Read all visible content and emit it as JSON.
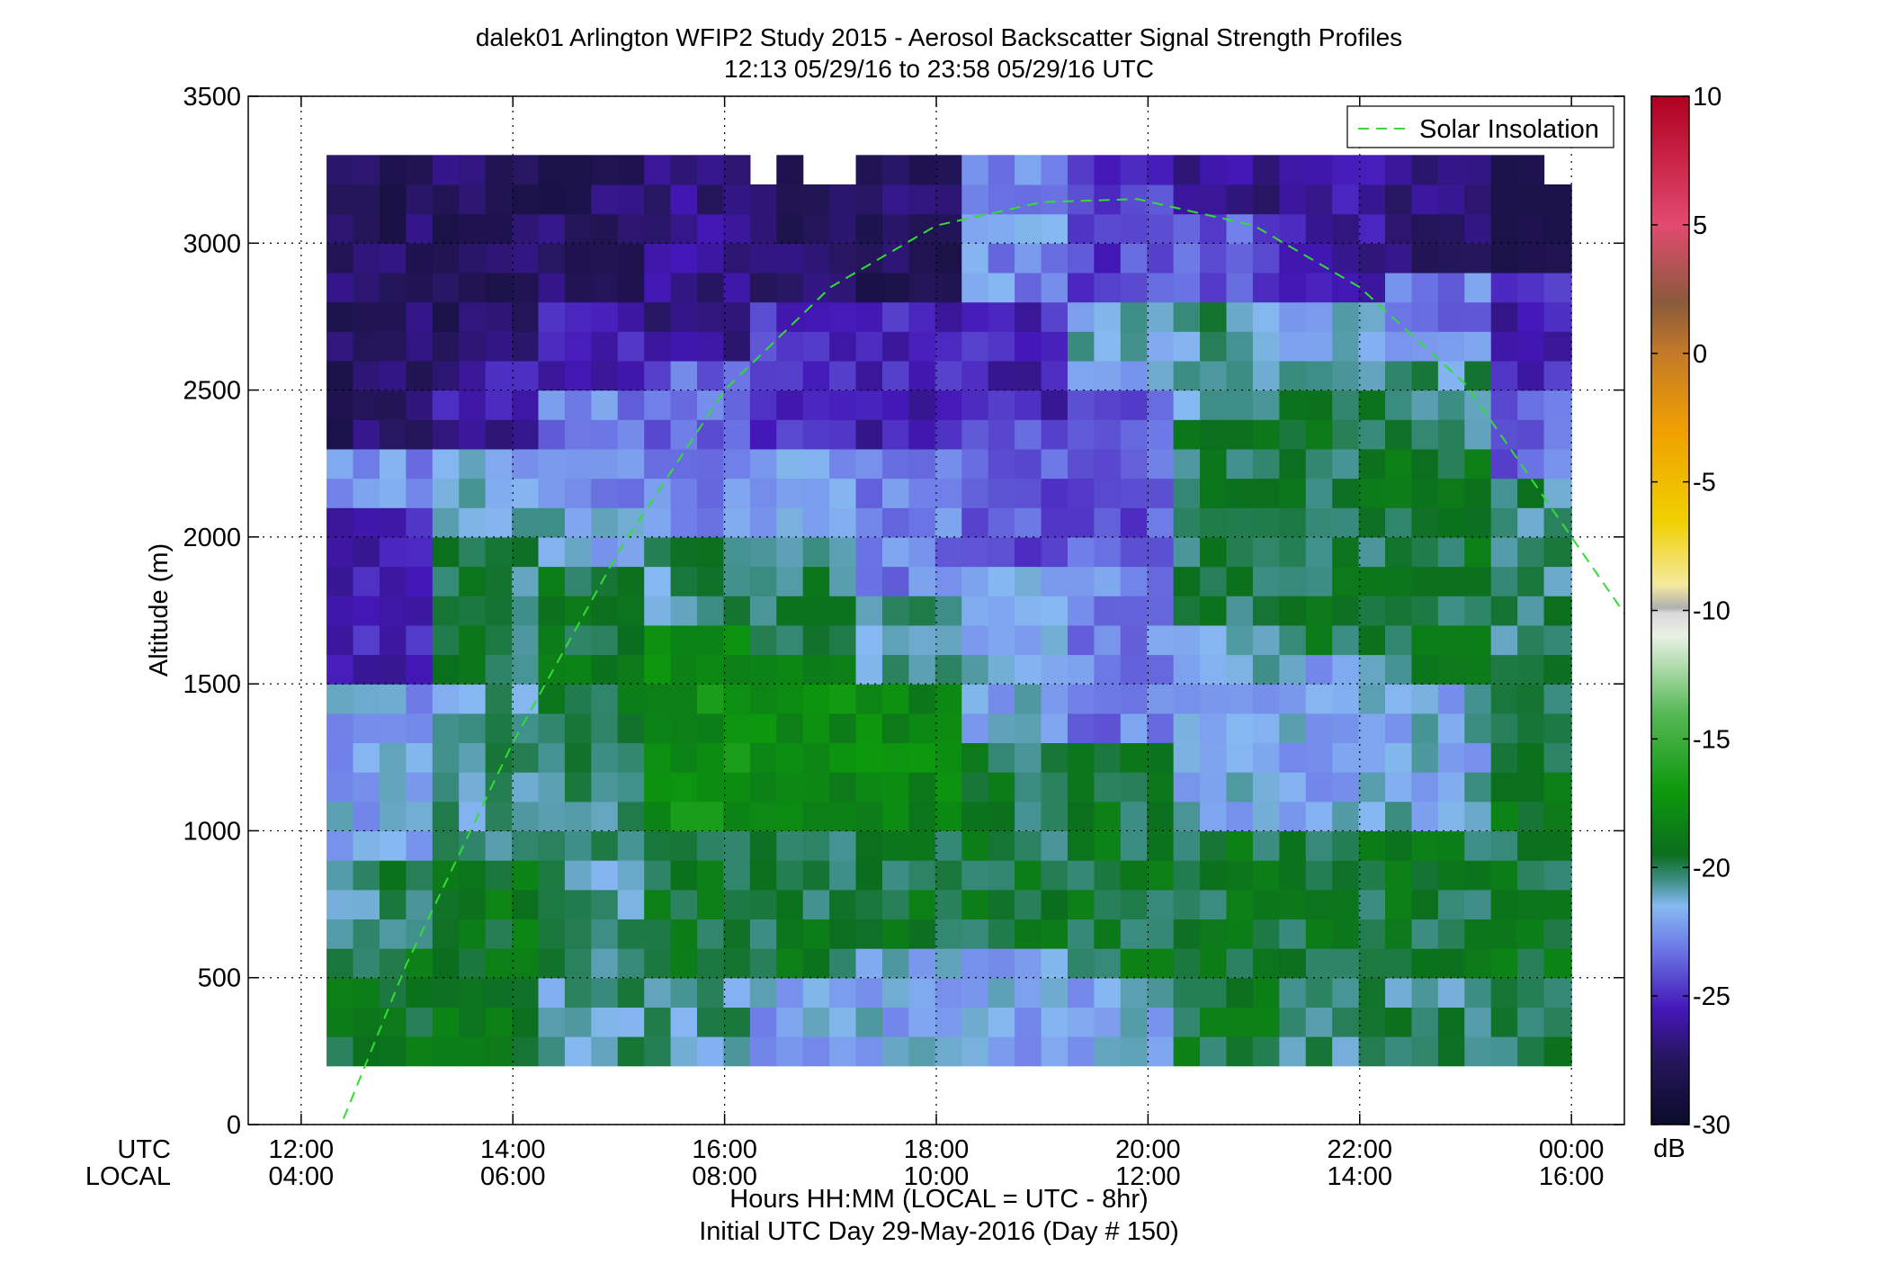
{
  "chart_data": {
    "type": "heatmap",
    "title": "dalek01 Arlington WFIP2 Study 2015 - Aerosol Backscatter Signal Strength Profiles",
    "subtitle": "12:13 05/29/16 to 23:58 05/29/16  UTC",
    "xlabel": "Hours HH:MM  (LOCAL = UTC - 8hr)",
    "xlabel2": "Initial UTC Day 29-May-2016 (Day # 150)",
    "ylabel": "Altitude (m)",
    "x_row_labels": [
      "UTC",
      "LOCAL"
    ],
    "xlim": [
      11.5,
      24.5
    ],
    "ylim": [
      0,
      3500
    ],
    "x_ticks": [
      {
        "value": 12,
        "utc": "12:00",
        "local": "04:00"
      },
      {
        "value": 14,
        "utc": "14:00",
        "local": "06:00"
      },
      {
        "value": 16,
        "utc": "16:00",
        "local": "08:00"
      },
      {
        "value": 18,
        "utc": "18:00",
        "local": "10:00"
      },
      {
        "value": 20,
        "utc": "20:00",
        "local": "12:00"
      },
      {
        "value": 22,
        "utc": "22:00",
        "local": "14:00"
      },
      {
        "value": 24,
        "utc": "00:00",
        "local": "16:00"
      }
    ],
    "y_ticks": [
      0,
      500,
      1000,
      1500,
      2000,
      2500,
      3000,
      3500
    ],
    "grid": true,
    "colorbar": {
      "unit": "dB",
      "range": [
        -30,
        10
      ],
      "ticks": [
        -30,
        -25,
        -20,
        -15,
        -10,
        -5,
        0,
        5,
        10
      ],
      "stops": [
        {
          "v": -30,
          "c": "#0b0b2a"
        },
        {
          "v": -27.5,
          "c": "#25165c"
        },
        {
          "v": -25.5,
          "c": "#4417b8"
        },
        {
          "v": -23,
          "c": "#6f7ee8"
        },
        {
          "v": -21.5,
          "c": "#86b9f2"
        },
        {
          "v": -20.5,
          "c": "#3d8e86"
        },
        {
          "v": -19.5,
          "c": "#0b6e1e"
        },
        {
          "v": -17,
          "c": "#0d990d"
        },
        {
          "v": -14,
          "c": "#55b855"
        },
        {
          "v": -11,
          "c": "#e9f1e4"
        },
        {
          "v": -10.1,
          "c": "#d9d9d9"
        },
        {
          "v": -9.9,
          "c": "#b0b0b0"
        },
        {
          "v": -9,
          "c": "#f4e9a0"
        },
        {
          "v": -6.5,
          "c": "#f0d000"
        },
        {
          "v": -3,
          "c": "#f0a000"
        },
        {
          "v": 0,
          "c": "#c47a28"
        },
        {
          "v": 2,
          "c": "#8a5a3c"
        },
        {
          "v": 5,
          "c": "#e24a70"
        },
        {
          "v": 10,
          "c": "#b00020"
        }
      ]
    },
    "grid_x": {
      "start": 12.24,
      "step": 0.25,
      "count": 47
    },
    "grid_y": {
      "start": 200,
      "step": 100,
      "count": 31
    },
    "z_description": "backscatter signal strength in dB; null = no data",
    "regions": [
      {
        "x0": 12.24,
        "x1": 13.0,
        "y0": 200,
        "y1": 600,
        "z": -19.2
      },
      {
        "x0": 12.24,
        "x1": 13.0,
        "y0": 600,
        "y1": 900,
        "z": -20.3
      },
      {
        "x0": 12.24,
        "x1": 13.0,
        "y0": 900,
        "y1": 1500,
        "z": -22.0
      },
      {
        "x0": 12.24,
        "x1": 13.0,
        "y0": 1500,
        "y1": 2100,
        "z": -25.5
      },
      {
        "x0": 12.24,
        "x1": 13.0,
        "y0": 2100,
        "y1": 2300,
        "z": -22.5
      },
      {
        "x0": 12.24,
        "x1": 13.0,
        "y0": 2300,
        "y1": 3500,
        "z": -27.5
      },
      {
        "x0": 13.0,
        "x1": 14.0,
        "y0": 200,
        "y1": 900,
        "z": -19.0
      },
      {
        "x0": 13.0,
        "x1": 14.0,
        "y0": 900,
        "y1": 1500,
        "z": -20.8
      },
      {
        "x0": 13.0,
        "x1": 14.0,
        "y0": 1500,
        "y1": 2000,
        "z": -20.0
      },
      {
        "x0": 13.0,
        "x1": 14.0,
        "y0": 2000,
        "y1": 2300,
        "z": -21.5
      },
      {
        "x0": 13.0,
        "x1": 14.0,
        "y0": 2300,
        "y1": 2600,
        "z": -26.0
      },
      {
        "x0": 13.0,
        "x1": 14.0,
        "y0": 2600,
        "y1": 3500,
        "z": -27.5
      },
      {
        "x0": 14.0,
        "x1": 15.0,
        "y0": 200,
        "y1": 500,
        "z": -20.8
      },
      {
        "x0": 14.0,
        "x1": 15.0,
        "y0": 500,
        "y1": 1100,
        "z": -20.6
      },
      {
        "x0": 14.0,
        "x1": 15.0,
        "y0": 1100,
        "y1": 1400,
        "z": -20.7
      },
      {
        "x0": 14.0,
        "x1": 15.0,
        "y0": 1400,
        "y1": 1900,
        "z": -19.3
      },
      {
        "x0": 14.0,
        "x1": 15.0,
        "y0": 1900,
        "y1": 2100,
        "z": -21.5
      },
      {
        "x0": 14.0,
        "x1": 15.0,
        "y0": 2100,
        "y1": 2500,
        "z": -23.0
      },
      {
        "x0": 14.0,
        "x1": 15.0,
        "y0": 2500,
        "y1": 2800,
        "z": -25.5
      },
      {
        "x0": 14.0,
        "x1": 15.0,
        "y0": 2800,
        "y1": 3500,
        "z": -27.5
      },
      {
        "x0": 15.0,
        "x1": 16.0,
        "y0": 200,
        "y1": 500,
        "z": -20.8
      },
      {
        "x0": 15.0,
        "x1": 16.0,
        "y0": 500,
        "y1": 1000,
        "z": -19.5
      },
      {
        "x0": 15.0,
        "x1": 16.0,
        "y0": 1000,
        "y1": 1700,
        "z": -17.5
      },
      {
        "x0": 15.0,
        "x1": 16.0,
        "y0": 1700,
        "y1": 2000,
        "z": -20.5
      },
      {
        "x0": 15.0,
        "x1": 16.0,
        "y0": 2000,
        "y1": 2300,
        "z": -22.5
      },
      {
        "x0": 15.0,
        "x1": 16.0,
        "y0": 2300,
        "y1": 2600,
        "z": -23.5
      },
      {
        "x0": 15.0,
        "x1": 16.0,
        "y0": 2600,
        "y1": 3500,
        "z": -26.5
      },
      {
        "x0": 16.0,
        "x1": 17.0,
        "y0": 200,
        "y1": 500,
        "z": -22.0
      },
      {
        "x0": 16.0,
        "x1": 17.0,
        "y0": 500,
        "y1": 1000,
        "z": -19.6
      },
      {
        "x0": 16.0,
        "x1": 17.0,
        "y0": 1000,
        "y1": 1600,
        "z": -17.8
      },
      {
        "x0": 16.0,
        "x1": 17.0,
        "y0": 1600,
        "y1": 2000,
        "z": -20.0
      },
      {
        "x0": 16.0,
        "x1": 17.0,
        "y0": 2000,
        "y1": 2300,
        "z": -22.0
      },
      {
        "x0": 16.0,
        "x1": 17.0,
        "y0": 2300,
        "y1": 2800,
        "z": -25.0
      },
      {
        "x0": 16.0,
        "x1": 17.0,
        "y0": 2800,
        "y1": 3500,
        "z": -27.5
      },
      {
        "x0": 17.0,
        "x1": 18.0,
        "y0": 200,
        "y1": 600,
        "z": -21.8
      },
      {
        "x0": 17.0,
        "x1": 18.0,
        "y0": 600,
        "y1": 1000,
        "z": -19.4
      },
      {
        "x0": 17.0,
        "x1": 18.0,
        "y0": 1000,
        "y1": 1500,
        "z": -18.0
      },
      {
        "x0": 17.0,
        "x1": 18.0,
        "y0": 1500,
        "y1": 1800,
        "z": -20.5
      },
      {
        "x0": 17.0,
        "x1": 18.0,
        "y0": 1800,
        "y1": 2300,
        "z": -23.0
      },
      {
        "x0": 17.0,
        "x1": 18.0,
        "y0": 2300,
        "y1": 2800,
        "z": -25.5
      },
      {
        "x0": 17.0,
        "x1": 18.0,
        "y0": 2800,
        "y1": 3500,
        "z": -27.5
      },
      {
        "x0": 18.0,
        "x1": 19.0,
        "y0": 200,
        "y1": 600,
        "z": -21.9
      },
      {
        "x0": 18.0,
        "x1": 19.0,
        "y0": 600,
        "y1": 1300,
        "z": -19.6
      },
      {
        "x0": 18.0,
        "x1": 19.0,
        "y0": 1300,
        "y1": 1900,
        "z": -21.8
      },
      {
        "x0": 18.0,
        "x1": 19.0,
        "y0": 1900,
        "y1": 2400,
        "z": -24.0
      },
      {
        "x0": 18.0,
        "x1": 19.0,
        "y0": 2400,
        "y1": 2800,
        "z": -25.5
      },
      {
        "x0": 18.0,
        "x1": 19.0,
        "y0": 2800,
        "y1": 3500,
        "z": -22.5
      },
      {
        "x0": 19.0,
        "x1": 20.0,
        "y0": 200,
        "y1": 500,
        "z": -21.7
      },
      {
        "x0": 19.0,
        "x1": 20.0,
        "y0": 500,
        "y1": 1300,
        "z": -19.4
      },
      {
        "x0": 19.0,
        "x1": 20.0,
        "y0": 1300,
        "y1": 1900,
        "z": -23.0
      },
      {
        "x0": 19.0,
        "x1": 20.0,
        "y0": 1900,
        "y1": 2500,
        "z": -24.0
      },
      {
        "x0": 19.0,
        "x1": 20.0,
        "y0": 2500,
        "y1": 2800,
        "z": -21.5
      },
      {
        "x0": 19.0,
        "x1": 20.0,
        "y0": 2800,
        "y1": 3500,
        "z": -24.5
      },
      {
        "x0": 20.0,
        "x1": 21.0,
        "y0": 200,
        "y1": 1000,
        "z": -19.4
      },
      {
        "x0": 20.0,
        "x1": 21.0,
        "y0": 1000,
        "y1": 1700,
        "z": -21.5
      },
      {
        "x0": 20.0,
        "x1": 21.0,
        "y0": 1700,
        "y1": 2400,
        "z": -19.8
      },
      {
        "x0": 20.0,
        "x1": 21.0,
        "y0": 2400,
        "y1": 2800,
        "z": -20.5
      },
      {
        "x0": 20.0,
        "x1": 21.0,
        "y0": 2800,
        "y1": 3100,
        "z": -24.0
      },
      {
        "x0": 20.0,
        "x1": 21.0,
        "y0": 3100,
        "y1": 3500,
        "z": -26.5
      },
      {
        "x0": 21.0,
        "x1": 22.0,
        "y0": 200,
        "y1": 500,
        "z": -20.2
      },
      {
        "x0": 21.0,
        "x1": 22.0,
        "y0": 500,
        "y1": 1000,
        "z": -19.4
      },
      {
        "x0": 21.0,
        "x1": 22.0,
        "y0": 1000,
        "y1": 1600,
        "z": -21.8
      },
      {
        "x0": 21.0,
        "x1": 22.0,
        "y0": 1600,
        "y1": 2500,
        "z": -19.6
      },
      {
        "x0": 21.0,
        "x1": 22.0,
        "y0": 2500,
        "y1": 2800,
        "z": -21.5
      },
      {
        "x0": 21.0,
        "x1": 22.0,
        "y0": 2800,
        "y1": 3500,
        "z": -26.0
      },
      {
        "x0": 22.0,
        "x1": 23.0,
        "y0": 200,
        "y1": 500,
        "z": -20.2
      },
      {
        "x0": 22.0,
        "x1": 23.0,
        "y0": 500,
        "y1": 1000,
        "z": -19.5
      },
      {
        "x0": 22.0,
        "x1": 23.0,
        "y0": 1000,
        "y1": 1500,
        "z": -21.5
      },
      {
        "x0": 22.0,
        "x1": 23.0,
        "y0": 1500,
        "y1": 2300,
        "z": -19.6
      },
      {
        "x0": 22.0,
        "x1": 23.0,
        "y0": 2300,
        "y1": 2600,
        "z": -20.6
      },
      {
        "x0": 22.0,
        "x1": 23.0,
        "y0": 2600,
        "y1": 2900,
        "z": -23.0
      },
      {
        "x0": 22.0,
        "x1": 23.0,
        "y0": 2900,
        "y1": 3500,
        "z": -27.0
      },
      {
        "x0": 23.0,
        "x1": 24.0,
        "y0": 200,
        "y1": 500,
        "z": -20.0
      },
      {
        "x0": 23.0,
        "x1": 24.0,
        "y0": 500,
        "y1": 1200,
        "z": -19.3
      },
      {
        "x0": 23.0,
        "x1": 24.0,
        "y0": 1200,
        "y1": 2200,
        "z": -20.2
      },
      {
        "x0": 23.0,
        "x1": 24.0,
        "y0": 2200,
        "y1": 2500,
        "z": -23.5
      },
      {
        "x0": 23.0,
        "x1": 24.0,
        "y0": 2500,
        "y1": 2900,
        "z": -25.5
      },
      {
        "x0": 23.0,
        "x1": 24.0,
        "y0": 2900,
        "y1": 3500,
        "z": -27.5
      }
    ],
    "missing_cells": [
      {
        "x0": 16.0,
        "x1": 16.25,
        "y0": 3200,
        "y1": 3300
      },
      {
        "x0": 16.5,
        "x1": 17.0,
        "y0": 3200,
        "y1": 3300
      },
      {
        "x0": 16.5,
        "x1": 16.75,
        "y0": 3300,
        "y1": 3500
      },
      {
        "x0": 17.25,
        "x1": 17.5,
        "y0": 3300,
        "y1": 3400
      },
      {
        "x0": 17.75,
        "x1": 18.0,
        "y0": 3300,
        "y1": 3400
      },
      {
        "x0": 23.5,
        "x1": 23.75,
        "y0": 3200,
        "y1": 3300
      },
      {
        "x0": 23.75,
        "x1": 24.0,
        "y0": 3400,
        "y1": 3500
      }
    ],
    "series": [
      {
        "name": "Solar Insolation",
        "style": "dashed",
        "color": "#33dd33",
        "x": [
          12.4,
          13.0,
          14.0,
          15.0,
          16.0,
          17.0,
          18.0,
          19.0,
          19.9,
          21.0,
          22.0,
          23.0,
          24.0,
          24.5
        ],
        "y": [
          20,
          550,
          1300,
          1950,
          2500,
          2850,
          3060,
          3140,
          3150,
          3060,
          2850,
          2520,
          2000,
          1740
        ]
      }
    ],
    "legend": {
      "entries": [
        "Solar Insolation"
      ],
      "position": "top-right"
    }
  }
}
